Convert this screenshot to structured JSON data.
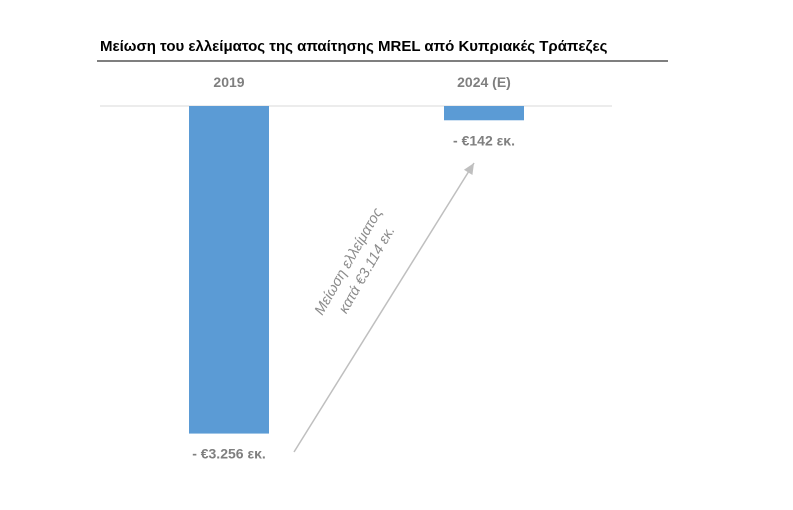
{
  "chart_data": {
    "type": "bar",
    "title": "Μείωση του ελλείματος της απαίτησης MREL από Κυπριακές Τράπεζες",
    "categories": [
      "2019",
      "2024 (E)"
    ],
    "values": [
      -3256,
      -142
    ],
    "value_labels": [
      "- €3.256 εκ.",
      "- €142 εκ."
    ],
    "xlabel": "",
    "ylabel": "",
    "ylim": [
      -3300,
      0
    ],
    "grid": false,
    "legend": "none",
    "annotation": {
      "lines": [
        "Μείωση ελλείματος",
        "κατά €3.114 εκ."
      ],
      "from": "2019",
      "to": "2024 (E)"
    }
  },
  "colors": {
    "bar": "#5b9bd5",
    "title": "#000000",
    "title_rule": "#7f7f7f",
    "category_text": "#7f7f7f",
    "value_text": "#7f7f7f",
    "annotation_text": "#8c8c8c",
    "arrow": "#bfbfbf",
    "baseline": "#d9d9d9"
  }
}
